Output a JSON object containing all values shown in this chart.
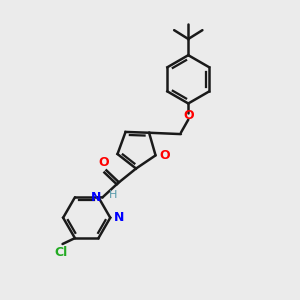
{
  "background_color": "#ebebeb",
  "bond_color": "#1a1a1a",
  "bond_width": 1.8,
  "figsize": [
    3.0,
    3.0
  ],
  "dpi": 100,
  "xlim": [
    0,
    10
  ],
  "ylim": [
    0,
    10
  ]
}
